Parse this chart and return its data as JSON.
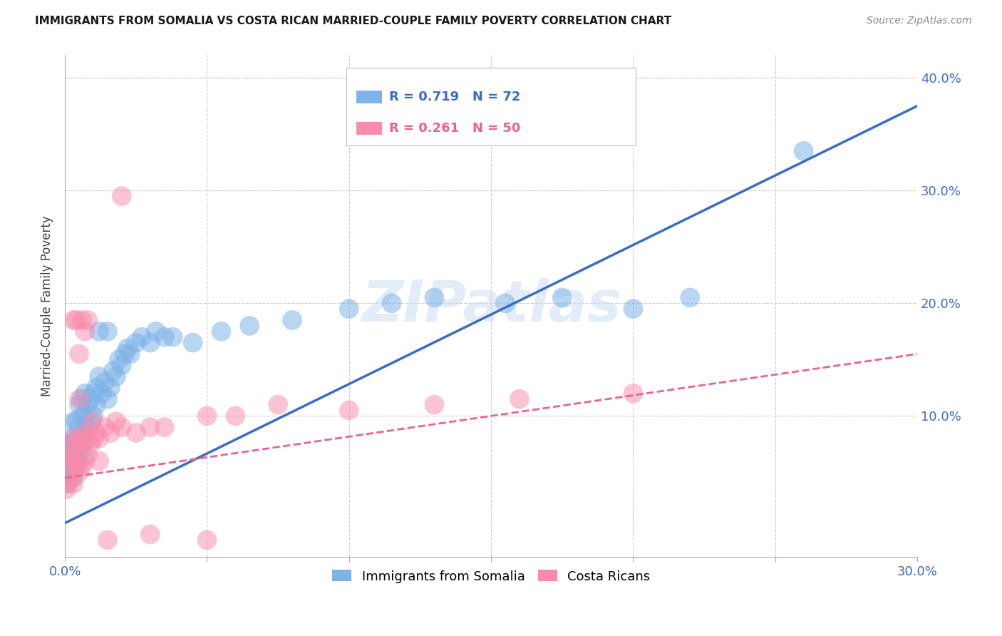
{
  "title": "IMMIGRANTS FROM SOMALIA VS COSTA RICAN MARRIED-COUPLE FAMILY POVERTY CORRELATION CHART",
  "source": "Source: ZipAtlas.com",
  "ylabel": "Married-Couple Family Poverty",
  "xlim": [
    0.0,
    0.3
  ],
  "ylim": [
    -0.025,
    0.42
  ],
  "blue_color": "#7EB3E8",
  "pink_color": "#F98BAB",
  "blue_line_color": "#3A6CC8",
  "pink_line_color": "#F06090",
  "watermark": "ZIPatlas",
  "blue_r": "R = 0.719",
  "blue_n": "N = 72",
  "pink_r": "R = 0.261",
  "pink_n": "N = 50",
  "blue_line_x0": 0.0,
  "blue_line_y0": 0.005,
  "blue_line_x1": 0.3,
  "blue_line_y1": 0.375,
  "pink_line_x0": 0.0,
  "pink_line_y0": 0.045,
  "pink_line_x1": 0.3,
  "pink_line_y1": 0.155,
  "blue_scatter_x": [
    0.0005,
    0.001,
    0.001,
    0.001,
    0.0015,
    0.0015,
    0.002,
    0.002,
    0.002,
    0.002,
    0.0025,
    0.0025,
    0.003,
    0.003,
    0.003,
    0.003,
    0.0035,
    0.004,
    0.004,
    0.004,
    0.004,
    0.005,
    0.005,
    0.005,
    0.005,
    0.006,
    0.006,
    0.006,
    0.006,
    0.007,
    0.007,
    0.007,
    0.008,
    0.008,
    0.009,
    0.009,
    0.01,
    0.01,
    0.011,
    0.011,
    0.012,
    0.013,
    0.014,
    0.015,
    0.016,
    0.017,
    0.018,
    0.019,
    0.02,
    0.021,
    0.022,
    0.023,
    0.025,
    0.027,
    0.03,
    0.032,
    0.035,
    0.038,
    0.045,
    0.055,
    0.065,
    0.08,
    0.1,
    0.115,
    0.13,
    0.155,
    0.175,
    0.2,
    0.22,
    0.26,
    0.012,
    0.015
  ],
  "blue_scatter_y": [
    0.04,
    0.045,
    0.06,
    0.075,
    0.05,
    0.065,
    0.05,
    0.06,
    0.07,
    0.08,
    0.055,
    0.075,
    0.045,
    0.06,
    0.075,
    0.095,
    0.07,
    0.055,
    0.065,
    0.08,
    0.095,
    0.06,
    0.075,
    0.09,
    0.11,
    0.07,
    0.085,
    0.1,
    0.115,
    0.08,
    0.1,
    0.12,
    0.09,
    0.11,
    0.095,
    0.115,
    0.1,
    0.12,
    0.11,
    0.125,
    0.135,
    0.12,
    0.13,
    0.115,
    0.125,
    0.14,
    0.135,
    0.15,
    0.145,
    0.155,
    0.16,
    0.155,
    0.165,
    0.17,
    0.165,
    0.175,
    0.17,
    0.17,
    0.165,
    0.175,
    0.18,
    0.185,
    0.195,
    0.2,
    0.205,
    0.2,
    0.205,
    0.195,
    0.205,
    0.335,
    0.175,
    0.175
  ],
  "pink_scatter_x": [
    0.0005,
    0.001,
    0.001,
    0.0015,
    0.002,
    0.002,
    0.003,
    0.003,
    0.003,
    0.004,
    0.004,
    0.005,
    0.005,
    0.006,
    0.006,
    0.007,
    0.007,
    0.008,
    0.008,
    0.009,
    0.01,
    0.011,
    0.012,
    0.014,
    0.016,
    0.018,
    0.02,
    0.025,
    0.03,
    0.035,
    0.05,
    0.06,
    0.075,
    0.1,
    0.13,
    0.16,
    0.2,
    0.003,
    0.004,
    0.005,
    0.005,
    0.006,
    0.007,
    0.008,
    0.01,
    0.012,
    0.015,
    0.02,
    0.03,
    0.05
  ],
  "pink_scatter_y": [
    0.035,
    0.04,
    0.06,
    0.065,
    0.045,
    0.07,
    0.04,
    0.06,
    0.08,
    0.055,
    0.075,
    0.05,
    0.08,
    0.055,
    0.075,
    0.06,
    0.085,
    0.065,
    0.08,
    0.075,
    0.08,
    0.085,
    0.08,
    0.09,
    0.085,
    0.095,
    0.09,
    0.085,
    0.09,
    0.09,
    0.1,
    0.1,
    0.11,
    0.105,
    0.11,
    0.115,
    0.12,
    0.185,
    0.185,
    0.155,
    0.115,
    0.185,
    0.175,
    0.185,
    0.095,
    0.06,
    -0.01,
    0.295,
    -0.005,
    -0.01
  ]
}
